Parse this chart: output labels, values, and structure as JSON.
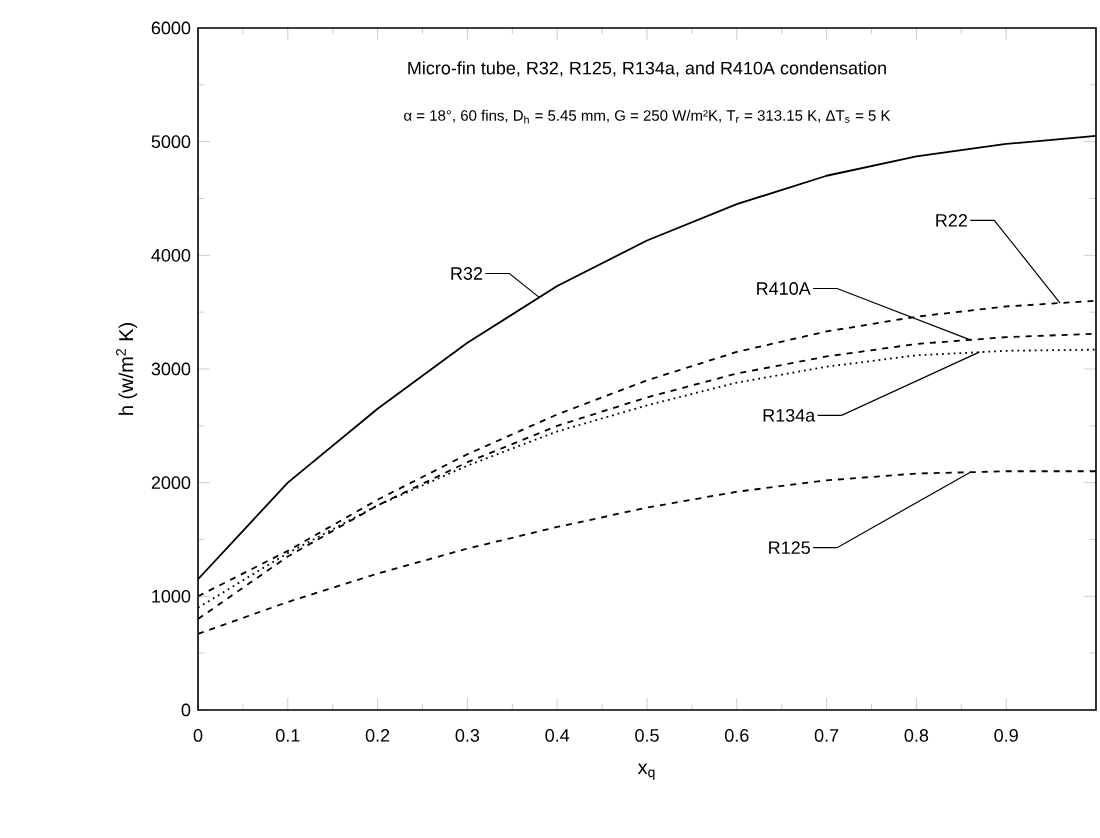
{
  "chart_data": {
    "type": "line",
    "title": "Micro-fin tube, R32, R125, R134a, and R410A condensation",
    "subtitle": "α = 18°, 60 fins, D$_{h}$ = 5.45 mm, G = 250 W/m²K, T$_{r}$ = 313.15 K, ΔT$_{s}$ = 5 K",
    "xlabel": "x$_{q}$",
    "ylabel": "h (w/m$^{2}$ K)",
    "x": [
      0,
      0.1,
      0.2,
      0.3,
      0.4,
      0.5,
      0.6,
      0.7,
      0.8,
      0.9,
      1.0
    ],
    "series": [
      {
        "name": "R32",
        "color": "#000000",
        "line_style": "solid",
        "values": [
          1150,
          2000,
          2650,
          3230,
          3730,
          4130,
          4450,
          4700,
          4870,
          4980,
          5050
        ]
      },
      {
        "name": "R22",
        "color": "#000000",
        "line_style": "dashed",
        "values": [
          1000,
          1400,
          1850,
          2250,
          2600,
          2900,
          3150,
          3330,
          3460,
          3550,
          3600
        ]
      },
      {
        "name": "R410A",
        "color": "#000000",
        "line_style": "dashed",
        "values": [
          800,
          1350,
          1800,
          2180,
          2500,
          2750,
          2960,
          3110,
          3220,
          3280,
          3310
        ]
      },
      {
        "name": "R134a",
        "color": "#000000",
        "line_style": "dotted",
        "values": [
          900,
          1380,
          1800,
          2150,
          2450,
          2680,
          2880,
          3020,
          3120,
          3160,
          3170
        ]
      },
      {
        "name": "R125",
        "color": "#000000",
        "line_style": "dashed",
        "values": [
          670,
          950,
          1200,
          1420,
          1610,
          1780,
          1920,
          2020,
          2080,
          2100,
          2100
        ]
      }
    ],
    "xlim": [
      0,
      1
    ],
    "ylim": [
      0,
      6000
    ],
    "xticks": [
      0,
      0.1,
      0.2,
      0.3,
      0.4,
      0.5,
      0.6,
      0.7,
      0.8,
      0.9
    ],
    "yticks": [
      0,
      1000,
      2000,
      3000,
      4000,
      5000,
      6000
    ]
  }
}
